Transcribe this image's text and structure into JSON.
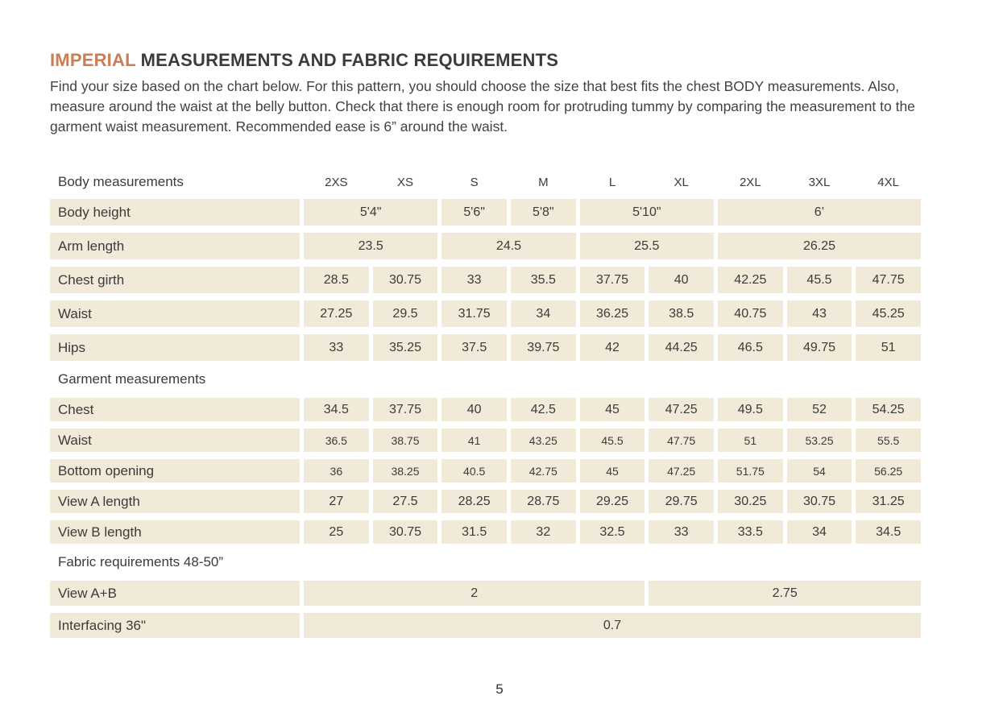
{
  "colors": {
    "accent": "#ca7d57",
    "cell_bg": "#f2ead9",
    "text": "#3b3b3b",
    "page_bg": "#ffffff"
  },
  "header": {
    "title_accent": "IMPERIAL",
    "title_rest": " MEASUREMENTS AND FABRIC REQUIREMENTS",
    "intro": "Find your size based on the chart below. For this pattern, you should choose the size that best fits the chest BODY measurements.  Also, measure around the waist at the belly button. Check that there is enough room for protruding tummy by comparing the measurement to the garment waist measurement. Recommended ease is 6” around the waist."
  },
  "table": {
    "size_header": {
      "label": "Body measurements",
      "sizes": [
        "2XS",
        "XS",
        "S",
        "M",
        "L",
        "XL",
        "2XL",
        "3XL",
        "4XL"
      ]
    },
    "sections": [
      {
        "heading": null,
        "rows": [
          {
            "label": "Body height",
            "cells": [
              {
                "text": "5'4\"",
                "span": 2
              },
              {
                "text": "5'6\"",
                "span": 1
              },
              {
                "text": "5'8\"",
                "span": 1
              },
              {
                "text": "5'10\"",
                "span": 2
              },
              {
                "text": "6’",
                "span": 3
              }
            ]
          },
          {
            "label": "Arm length",
            "cells": [
              {
                "text": "23.5",
                "span": 2
              },
              {
                "text": "24.5",
                "span": 2
              },
              {
                "text": "25.5",
                "span": 2
              },
              {
                "text": "26.25",
                "span": 3
              }
            ]
          },
          {
            "label": "Chest girth",
            "cells": [
              {
                "text": "28.5",
                "span": 1
              },
              {
                "text": "30.75",
                "span": 1
              },
              {
                "text": "33",
                "span": 1
              },
              {
                "text": "35.5",
                "span": 1
              },
              {
                "text": "37.75",
                "span": 1
              },
              {
                "text": "40",
                "span": 1
              },
              {
                "text": "42.25",
                "span": 1
              },
              {
                "text": "45.5",
                "span": 1
              },
              {
                "text": "47.75",
                "span": 1
              }
            ]
          },
          {
            "label": "Waist",
            "cells": [
              {
                "text": "27.25",
                "span": 1
              },
              {
                "text": "29.5",
                "span": 1
              },
              {
                "text": "31.75",
                "span": 1
              },
              {
                "text": "34",
                "span": 1
              },
              {
                "text": "36.25",
                "span": 1
              },
              {
                "text": "38.5",
                "span": 1
              },
              {
                "text": "40.75",
                "span": 1
              },
              {
                "text": "43",
                "span": 1
              },
              {
                "text": "45.25",
                "span": 1
              }
            ]
          },
          {
            "label": "Hips",
            "cells": [
              {
                "text": "33",
                "span": 1
              },
              {
                "text": "35.25",
                "span": 1
              },
              {
                "text": "37.5",
                "span": 1
              },
              {
                "text": "39.75",
                "span": 1
              },
              {
                "text": "42",
                "span": 1
              },
              {
                "text": "44.25",
                "span": 1
              },
              {
                "text": "46.5",
                "span": 1
              },
              {
                "text": "49.75",
                "span": 1
              },
              {
                "text": "51",
                "span": 1
              }
            ]
          }
        ]
      },
      {
        "heading": "Garment measurements",
        "rows": [
          {
            "label": "Chest",
            "cells": [
              {
                "text": "34.5",
                "span": 1
              },
              {
                "text": "37.75",
                "span": 1
              },
              {
                "text": "40",
                "span": 1
              },
              {
                "text": "42.5",
                "span": 1
              },
              {
                "text": "45",
                "span": 1
              },
              {
                "text": "47.25",
                "span": 1
              },
              {
                "text": "49.5",
                "span": 1
              },
              {
                "text": "52",
                "span": 1
              },
              {
                "text": "54.25",
                "span": 1
              }
            ]
          },
          {
            "label": "Waist",
            "small_values": true,
            "cells": [
              {
                "text": "36.5",
                "span": 1
              },
              {
                "text": "38.75",
                "span": 1
              },
              {
                "text": "41",
                "span": 1
              },
              {
                "text": "43.25",
                "span": 1
              },
              {
                "text": "45.5",
                "span": 1
              },
              {
                "text": "47.75",
                "span": 1
              },
              {
                "text": "51",
                "span": 1
              },
              {
                "text": "53.25",
                "span": 1
              },
              {
                "text": "55.5",
                "span": 1
              }
            ]
          },
          {
            "label": "Bottom opening",
            "small_values": true,
            "cells": [
              {
                "text": "36",
                "span": 1
              },
              {
                "text": "38.25",
                "span": 1
              },
              {
                "text": "40.5",
                "span": 1
              },
              {
                "text": "42.75",
                "span": 1
              },
              {
                "text": "45",
                "span": 1
              },
              {
                "text": "47.25",
                "span": 1
              },
              {
                "text": "51.75",
                "span": 1
              },
              {
                "text": "54",
                "span": 1
              },
              {
                "text": "56.25",
                "span": 1
              }
            ]
          },
          {
            "label": "View A length",
            "cells": [
              {
                "text": "27",
                "span": 1
              },
              {
                "text": "27.5",
                "span": 1
              },
              {
                "text": "28.25",
                "span": 1
              },
              {
                "text": "28.75",
                "span": 1
              },
              {
                "text": "29.25",
                "span": 1
              },
              {
                "text": "29.75",
                "span": 1
              },
              {
                "text": "30.25",
                "span": 1
              },
              {
                "text": "30.75",
                "span": 1
              },
              {
                "text": "31.25",
                "span": 1
              }
            ]
          },
          {
            "label": "View B length",
            "cells": [
              {
                "text": "25",
                "span": 1
              },
              {
                "text": "30.75",
                "span": 1
              },
              {
                "text": "31.5",
                "span": 1
              },
              {
                "text": "32",
                "span": 1
              },
              {
                "text": "32.5",
                "span": 1
              },
              {
                "text": "33",
                "span": 1
              },
              {
                "text": "33.5",
                "span": 1
              },
              {
                "text": "34",
                "span": 1
              },
              {
                "text": "34.5",
                "span": 1
              }
            ]
          }
        ]
      },
      {
        "heading": "Fabric requirements 48-50”",
        "rows": [
          {
            "label": "View A+B",
            "cells": [
              {
                "text": "2",
                "span": 5
              },
              {
                "text": "2.75",
                "span": 4
              }
            ]
          },
          {
            "label": "Interfacing 36\"",
            "cells": [
              {
                "text": "0.7",
                "span": 9
              }
            ]
          }
        ]
      }
    ]
  },
  "footer": {
    "page_number": "5"
  }
}
